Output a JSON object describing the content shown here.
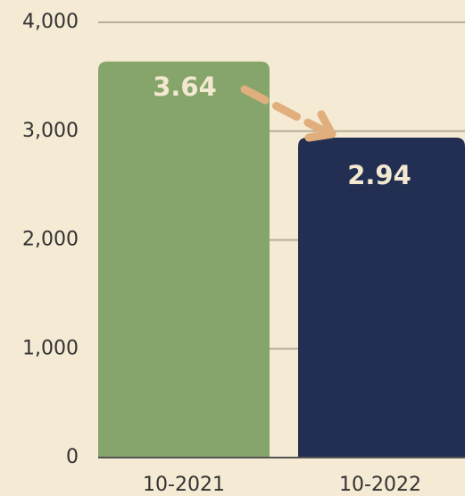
{
  "chart_data": {
    "type": "bar",
    "categories": [
      "10-2021",
      "10-2022"
    ],
    "values": [
      3640,
      2940
    ],
    "value_labels": [
      "3.64",
      "2.94"
    ],
    "colors": [
      "#86a56b",
      "#222e52"
    ],
    "ylim": [
      0,
      4000
    ],
    "yticks": [
      0,
      {
        "value": 1000,
        "label": "1,000"
      },
      {
        "value": 2000,
        "label": "2,000"
      },
      {
        "value": 3000,
        "label": "3,000"
      },
      {
        "value": 4000,
        "label": "4,000"
      }
    ],
    "grid": true
  }
}
